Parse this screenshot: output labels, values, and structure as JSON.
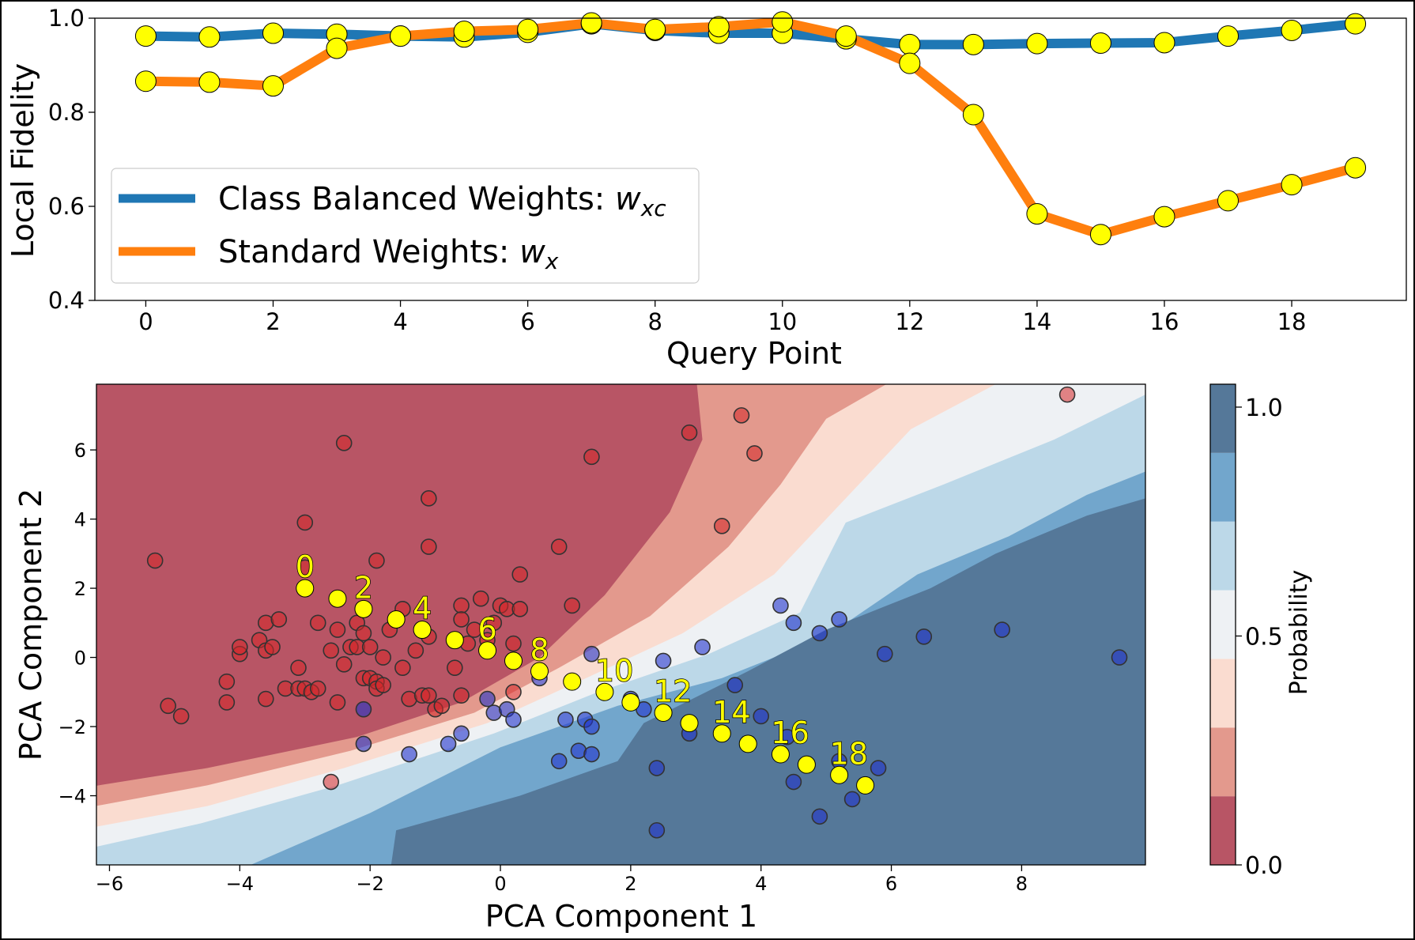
{
  "chart_data": [
    {
      "type": "line",
      "xlabel": "Query Point",
      "ylabel": "Local Fidelity",
      "xlim": [
        -0.8,
        19.8
      ],
      "ylim": [
        0.4,
        1.0
      ],
      "xticks": [
        0,
        2,
        4,
        6,
        8,
        10,
        12,
        14,
        16,
        18
      ],
      "yticks": [
        0.4,
        0.6,
        0.8,
        1.0
      ],
      "xtick_labels": [
        "0",
        "2",
        "4",
        "6",
        "8",
        "10",
        "12",
        "14",
        "16",
        "18"
      ],
      "ytick_labels": [
        "0.4",
        "0.6",
        "0.8",
        "1.0"
      ],
      "legend_position": "center-left",
      "x": [
        0,
        1,
        2,
        3,
        4,
        5,
        6,
        7,
        8,
        9,
        10,
        11,
        12,
        13,
        14,
        15,
        16,
        17,
        18,
        19
      ],
      "series": [
        {
          "name": "Class Balanced Weights: ",
          "name_math": "w",
          "name_sub": "xc",
          "color": "#1f77b4",
          "values": [
            0.962,
            0.96,
            0.968,
            0.966,
            0.962,
            0.96,
            0.97,
            0.988,
            0.974,
            0.968,
            0.968,
            0.956,
            0.944,
            0.944,
            0.946,
            0.947,
            0.948,
            0.962,
            0.974,
            0.988
          ]
        },
        {
          "name": "Standard Weights: ",
          "name_math": "w",
          "name_sub": "x",
          "color": "#ff7f0e",
          "values": [
            0.866,
            0.864,
            0.856,
            0.936,
            0.962,
            0.972,
            0.976,
            0.99,
            0.976,
            0.982,
            0.992,
            0.962,
            0.904,
            0.795,
            0.584,
            0.54,
            0.578,
            0.612,
            0.646,
            0.682
          ]
        }
      ],
      "marker_color": "#ffff00"
    },
    {
      "type": "scatter",
      "xlabel": "PCA Component 1",
      "ylabel": "PCA Component 2",
      "xlim": [
        -6.2,
        9.9
      ],
      "ylim": [
        -6.0,
        7.9
      ],
      "xticks": [
        -6,
        -4,
        -2,
        0,
        2,
        4,
        6,
        8
      ],
      "yticks": [
        -4,
        -2,
        0,
        2,
        4,
        6
      ],
      "xtick_labels": [
        "−6",
        "−4",
        "−2",
        "0",
        "2",
        "4",
        "6",
        "8"
      ],
      "ytick_labels": [
        "−4",
        "−2",
        "0",
        "2",
        "4",
        "6"
      ],
      "background": "filled probability contour; red = class 0, blue = class 1",
      "colorbar": {
        "label": "Probability",
        "range": [
          0.0,
          1.0
        ],
        "ticks": [
          "0.0",
          "0.5",
          "1.0"
        ],
        "levels": [
          0.0,
          0.15,
          0.3,
          0.45,
          0.6,
          0.75,
          0.9,
          1.05
        ],
        "colors": [
          "#b85565",
          "#e3998d",
          "#fadcd0",
          "#eef1f4",
          "#bcd8e8",
          "#72a6cc",
          "#557899"
        ]
      },
      "class_colors": {
        "red": "#d62728",
        "blue": "#2233cc"
      },
      "red_points": [
        [
          -5.3,
          2.8
        ],
        [
          -5.1,
          -1.4
        ],
        [
          -4.9,
          -1.7
        ],
        [
          -4.2,
          -0.7
        ],
        [
          -4.2,
          -1.3
        ],
        [
          -4.0,
          0.1
        ],
        [
          -4.0,
          0.3
        ],
        [
          -3.7,
          0.5
        ],
        [
          -3.6,
          1.0
        ],
        [
          -3.6,
          0.2
        ],
        [
          -3.6,
          -1.2
        ],
        [
          -3.5,
          0.3
        ],
        [
          -3.4,
          1.1
        ],
        [
          -3.3,
          -0.9
        ],
        [
          -3.1,
          -0.3
        ],
        [
          -3.1,
          -0.9
        ],
        [
          -3.0,
          -0.9
        ],
        [
          -3.0,
          3.9
        ],
        [
          -3.0,
          2.6
        ],
        [
          -2.9,
          -1.0
        ],
        [
          -2.8,
          -0.9
        ],
        [
          -2.8,
          1.0
        ],
        [
          -2.6,
          0.2
        ],
        [
          -2.5,
          0.8
        ],
        [
          -2.5,
          -1.3
        ],
        [
          -2.4,
          -0.2
        ],
        [
          -2.4,
          6.2
        ],
        [
          -2.3,
          0.3
        ],
        [
          -2.2,
          0.3
        ],
        [
          -2.2,
          1.0
        ],
        [
          -2.1,
          0.7
        ],
        [
          -2.1,
          -0.6
        ],
        [
          -2.0,
          0.3
        ],
        [
          -2.0,
          -0.6
        ],
        [
          -1.9,
          2.8
        ],
        [
          -1.9,
          -0.7
        ],
        [
          -1.9,
          -0.9
        ],
        [
          -1.8,
          -0.8
        ],
        [
          -1.8,
          0.0
        ],
        [
          -1.7,
          0.8
        ],
        [
          -1.5,
          1.4
        ],
        [
          -1.5,
          -0.3
        ],
        [
          -1.4,
          -1.2
        ],
        [
          -1.3,
          0.2
        ],
        [
          -1.2,
          -1.1
        ],
        [
          -1.1,
          -1.1
        ],
        [
          -1.1,
          0.6
        ],
        [
          -1.1,
          4.6
        ],
        [
          -1.1,
          3.2
        ],
        [
          -1.0,
          -1.5
        ],
        [
          -0.9,
          -1.4
        ],
        [
          -0.7,
          -0.3
        ],
        [
          -0.6,
          1.5
        ],
        [
          -0.6,
          -1.1
        ],
        [
          -0.6,
          1.1
        ],
        [
          -0.5,
          0.4
        ],
        [
          -0.4,
          0.8
        ],
        [
          -0.3,
          1.7
        ],
        [
          -0.2,
          0.5
        ],
        [
          -0.1,
          1.0
        ],
        [
          0.0,
          1.5
        ],
        [
          0.1,
          1.4
        ],
        [
          0.2,
          0.4
        ],
        [
          0.2,
          -1.0
        ],
        [
          0.3,
          1.4
        ],
        [
          0.3,
          2.4
        ],
        [
          0.9,
          3.2
        ],
        [
          1.1,
          1.5
        ],
        [
          1.4,
          5.8
        ],
        [
          2.9,
          6.5
        ],
        [
          3.4,
          3.8
        ],
        [
          3.7,
          7.0
        ],
        [
          3.9,
          5.9
        ],
        [
          8.7,
          7.6
        ],
        [
          -2.6,
          -3.6
        ]
      ],
      "blue_points": [
        [
          -2.1,
          -1.5
        ],
        [
          -2.1,
          -2.5
        ],
        [
          -1.4,
          -2.8
        ],
        [
          -0.8,
          -2.5
        ],
        [
          -0.6,
          -2.2
        ],
        [
          -0.2,
          -1.2
        ],
        [
          -0.1,
          -1.6
        ],
        [
          0.1,
          -1.5
        ],
        [
          0.2,
          -1.8
        ],
        [
          0.6,
          -0.6
        ],
        [
          0.9,
          -3.0
        ],
        [
          1.0,
          -1.8
        ],
        [
          1.2,
          -2.7
        ],
        [
          1.3,
          -1.8
        ],
        [
          1.4,
          -2.0
        ],
        [
          1.4,
          -2.8
        ],
        [
          1.4,
          0.1
        ],
        [
          2.0,
          -1.2
        ],
        [
          2.2,
          -1.5
        ],
        [
          2.4,
          -3.2
        ],
        [
          2.5,
          -0.1
        ],
        [
          2.4,
          -5.0
        ],
        [
          2.9,
          -2.2
        ],
        [
          3.1,
          0.3
        ],
        [
          3.6,
          -0.8
        ],
        [
          4.0,
          -1.7
        ],
        [
          4.3,
          1.5
        ],
        [
          4.4,
          -2.3
        ],
        [
          4.5,
          1.0
        ],
        [
          4.5,
          -3.6
        ],
        [
          4.9,
          0.7
        ],
        [
          4.9,
          -4.6
        ],
        [
          5.2,
          1.1
        ],
        [
          5.2,
          -3.0
        ],
        [
          5.4,
          -4.1
        ],
        [
          5.9,
          0.1
        ],
        [
          5.8,
          -3.2
        ],
        [
          6.5,
          0.6
        ],
        [
          7.7,
          0.8
        ],
        [
          9.5,
          0.0
        ]
      ],
      "query_points": [
        [
          -3.0,
          2.0
        ],
        [
          -2.5,
          1.7
        ],
        [
          -2.1,
          1.4
        ],
        [
          -1.6,
          1.1
        ],
        [
          -1.2,
          0.8
        ],
        [
          -0.7,
          0.5
        ],
        [
          -0.2,
          0.2
        ],
        [
          0.2,
          -0.1
        ],
        [
          0.6,
          -0.4
        ],
        [
          1.1,
          -0.7
        ],
        [
          1.6,
          -1.0
        ],
        [
          2.0,
          -1.3
        ],
        [
          2.5,
          -1.6
        ],
        [
          2.9,
          -1.9
        ],
        [
          3.4,
          -2.2
        ],
        [
          3.8,
          -2.5
        ],
        [
          4.3,
          -2.8
        ],
        [
          4.7,
          -3.1
        ],
        [
          5.2,
          -3.4
        ],
        [
          5.6,
          -3.7
        ]
      ],
      "query_labels": [
        "0",
        "2",
        "4",
        "6",
        "8",
        "10",
        "12",
        "14",
        "16",
        "18"
      ]
    }
  ]
}
